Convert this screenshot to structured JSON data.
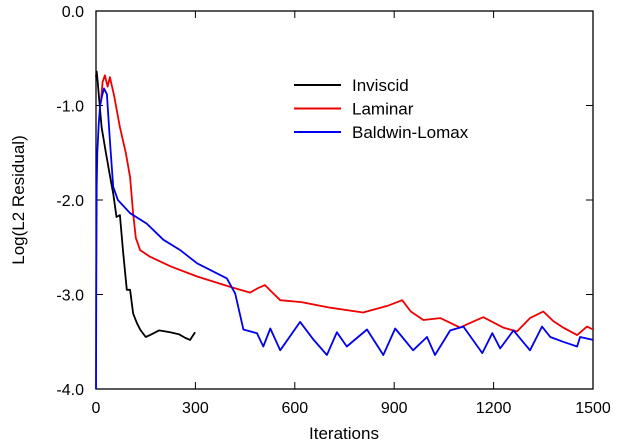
{
  "chart_data": {
    "type": "line",
    "title": "",
    "xlabel": "Iterations",
    "ylabel": "Log(L2 Residual)",
    "xlim": [
      0,
      1500
    ],
    "ylim": [
      -4.0,
      0.0
    ],
    "xticks": [
      "0",
      "300",
      "600",
      "900",
      "1200",
      "1500"
    ],
    "xtick_values": [
      0,
      300,
      600,
      900,
      1200,
      1500
    ],
    "yticks": [
      "0.0",
      "-1.0",
      "-2.0",
      "-3.0",
      "-4.0"
    ],
    "ytick_values": [
      0,
      -1,
      -2,
      -3,
      -4
    ],
    "grid": false,
    "legend_placement": "top-center",
    "series": [
      {
        "name": "Inviscid",
        "color": "#000000",
        "x": [
          0,
          2,
          5,
          10,
          17,
          30,
          45,
          52,
          62,
          72,
          82,
          93,
          103,
          112,
          123,
          133,
          150,
          163,
          190,
          224,
          250,
          270,
          284,
          299
        ],
        "y": [
          -0.7,
          -0.64,
          -0.75,
          -0.95,
          -1.23,
          -1.5,
          -1.8,
          -1.93,
          -2.18,
          -2.16,
          -2.56,
          -2.95,
          -2.95,
          -3.2,
          -3.3,
          -3.37,
          -3.45,
          -3.43,
          -3.38,
          -3.4,
          -3.42,
          -3.46,
          -3.48,
          -3.4
        ]
      },
      {
        "name": "Laminar",
        "color": "#ee0000",
        "x": [
          15,
          20,
          27,
          35,
          42,
          55,
          72,
          90,
          103,
          112,
          120,
          133,
          163,
          224,
          305,
          405,
          465,
          490,
          510,
          530,
          556,
          620,
          707,
          806,
          880,
          924,
          950,
          988,
          1039,
          1099,
          1130,
          1169,
          1229,
          1271,
          1310,
          1350,
          1380,
          1410,
          1452,
          1482,
          1500
        ],
        "y": [
          -0.95,
          -0.75,
          -0.68,
          -0.8,
          -0.7,
          -0.9,
          -1.23,
          -1.5,
          -1.76,
          -2.14,
          -2.4,
          -2.53,
          -2.6,
          -2.7,
          -2.81,
          -2.92,
          -2.98,
          -2.93,
          -2.9,
          -2.97,
          -3.06,
          -3.08,
          -3.14,
          -3.19,
          -3.12,
          -3.06,
          -3.18,
          -3.27,
          -3.25,
          -3.35,
          -3.3,
          -3.24,
          -3.35,
          -3.39,
          -3.25,
          -3.18,
          -3.28,
          -3.35,
          -3.43,
          -3.34,
          -3.37
        ]
      },
      {
        "name": "Baldwin-Lomax",
        "color": "#0000ee",
        "x": [
          0,
          1,
          2,
          4,
          8,
          12,
          18,
          24,
          33,
          42,
          52,
          66,
          103,
          153,
          203,
          254,
          305,
          395,
          420,
          445,
          486,
          505,
          526,
          556,
          616,
          657,
          697,
          727,
          757,
          818,
          867,
          903,
          957,
          999,
          1023,
          1069,
          1109,
          1166,
          1196,
          1220,
          1260,
          1310,
          1346,
          1371,
          1410,
          1452,
          1461,
          1500
        ],
        "y": [
          -4.0,
          -2.8,
          -1.86,
          -1.5,
          -1.2,
          -1.01,
          -0.9,
          -0.82,
          -0.88,
          -1.37,
          -1.86,
          -2.0,
          -2.14,
          -2.25,
          -2.42,
          -2.53,
          -2.67,
          -2.83,
          -2.99,
          -3.37,
          -3.41,
          -3.55,
          -3.36,
          -3.59,
          -3.29,
          -3.48,
          -3.64,
          -3.4,
          -3.55,
          -3.37,
          -3.64,
          -3.36,
          -3.59,
          -3.45,
          -3.64,
          -3.38,
          -3.34,
          -3.62,
          -3.41,
          -3.57,
          -3.38,
          -3.59,
          -3.34,
          -3.45,
          -3.5,
          -3.55,
          -3.45,
          -3.48
        ]
      }
    ]
  }
}
